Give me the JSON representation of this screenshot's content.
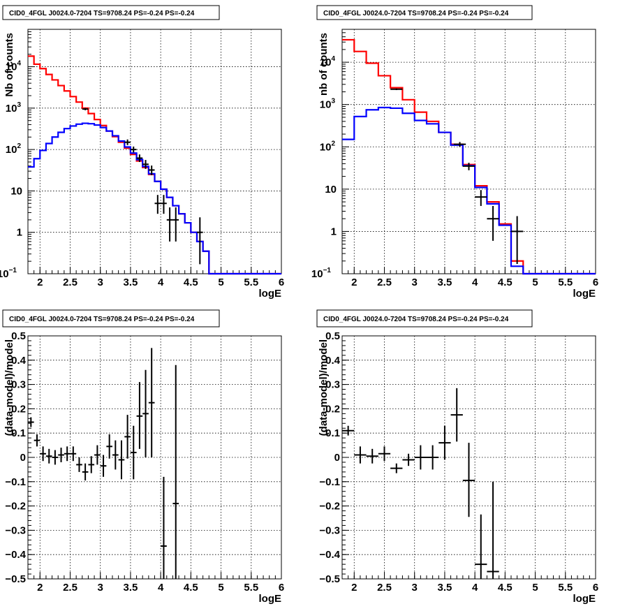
{
  "chart_data": [
    {
      "type": "histogram",
      "title": "CID0_4FGL J0024.0-7204 TS=9708.24 PS=-0.24 PS=-0.24",
      "xlabel": "logE",
      "ylabel": "Nb of counts",
      "xlim": [
        1.8,
        6.0
      ],
      "ylim": [
        0.1,
        80000
      ],
      "yscale": "log",
      "grid": true,
      "xticks": [
        "2",
        "2.5",
        "3",
        "3.5",
        "4",
        "4.5",
        "5",
        "5.5",
        "6"
      ],
      "yticks": [
        {
          "value": 0.1,
          "base": "10",
          "exp": "−1"
        },
        {
          "value": 1,
          "label": "1"
        },
        {
          "value": 10,
          "label": "10"
        },
        {
          "value": 100,
          "base": "10",
          "exp": "2"
        },
        {
          "value": 1000,
          "base": "10",
          "exp": "3"
        },
        {
          "value": 10000,
          "base": "10",
          "exp": "4"
        }
      ],
      "bin_edges": [
        1.8,
        1.9,
        2.0,
        2.1,
        2.2,
        2.3,
        2.4,
        2.5,
        2.6,
        2.7,
        2.8,
        2.9,
        3.0,
        3.1,
        3.2,
        3.3,
        3.4,
        3.5,
        3.6,
        3.7,
        3.8,
        3.9,
        4.0,
        4.1,
        4.2,
        4.3,
        4.4,
        4.5,
        4.6,
        4.7,
        4.8,
        4.9,
        5.0,
        5.1,
        5.2,
        5.3,
        5.4,
        5.5,
        5.6,
        5.7,
        5.8,
        5.9,
        6.0
      ],
      "series": [
        {
          "color": "#ff0000",
          "style": "step",
          "values": [
            18000,
            11500,
            9000,
            6500,
            4800,
            3500,
            2600,
            1900,
            1400,
            1000,
            740,
            530,
            380,
            280,
            205,
            150,
            108,
            76,
            53,
            37,
            25,
            17,
            11,
            7,
            4.4,
            2.8,
            1.7,
            1.0,
            0.6,
            0.35,
            0.1,
            0.1,
            0.1,
            0.1,
            0.1,
            0.1,
            0.1,
            0.1,
            0.1,
            0.1,
            0.1,
            0.1
          ]
        },
        {
          "color": "#0000ff",
          "style": "step",
          "values": [
            38,
            60,
            95,
            140,
            200,
            260,
            320,
            370,
            410,
            430,
            420,
            390,
            340,
            280,
            215,
            160,
            115,
            82,
            57,
            39,
            26,
            17,
            11,
            7,
            4.4,
            2.8,
            1.7,
            1.0,
            0.6,
            0.35,
            0.1,
            0.1,
            0.1,
            0.1,
            0.1,
            0.1,
            0.1,
            0.1,
            0.1,
            0.1,
            0.1,
            0.1
          ]
        }
      ],
      "points": [
        {
          "x": 2.75,
          "y": 950,
          "xerr": 0.05,
          "ylo": 890,
          "yhi": 1010
        },
        {
          "x": 3.45,
          "y": 150,
          "xerr": 0.05,
          "ylo": 128,
          "yhi": 175
        },
        {
          "x": 3.55,
          "y": 100,
          "xerr": 0.05,
          "ylo": 85,
          "yhi": 118
        },
        {
          "x": 3.65,
          "y": 62,
          "xerr": 0.05,
          "ylo": 50,
          "yhi": 76
        },
        {
          "x": 3.75,
          "y": 44,
          "xerr": 0.05,
          "ylo": 34,
          "yhi": 56
        },
        {
          "x": 3.85,
          "y": 32,
          "xerr": 0.05,
          "ylo": 24,
          "yhi": 41
        },
        {
          "x": 3.95,
          "y": 5,
          "xerr": 0.05,
          "ylo": 2.8,
          "yhi": 8
        },
        {
          "x": 4.05,
          "y": 5,
          "xerr": 0.05,
          "ylo": 2.8,
          "yhi": 8
        },
        {
          "x": 4.15,
          "y": 2,
          "xerr": 0.05,
          "ylo": 0.6,
          "yhi": 4
        },
        {
          "x": 4.25,
          "y": 2,
          "xerr": 0.05,
          "ylo": 0.6,
          "yhi": 4
        },
        {
          "x": 4.65,
          "y": 1,
          "xerr": 0.05,
          "ylo": 0.17,
          "yhi": 2.3
        }
      ]
    },
    {
      "type": "histogram",
      "title": "CID0_4FGL J0024.0-7204 TS=9708.24 PS=-0.24 PS=-0.24",
      "xlabel": "logE",
      "ylabel": "nb of counts",
      "xlim": [
        1.8,
        6.0
      ],
      "ylim": [
        0.1,
        60000
      ],
      "yscale": "log",
      "grid": true,
      "xticks": [
        "2",
        "2.5",
        "3",
        "3.5",
        "4",
        "4.5",
        "5",
        "5.5",
        "6"
      ],
      "yticks": [
        {
          "value": 0.1,
          "base": "10",
          "exp": "−1"
        },
        {
          "value": 1,
          "label": "1"
        },
        {
          "value": 10,
          "label": "10"
        },
        {
          "value": 100,
          "base": "10",
          "exp": "2"
        },
        {
          "value": 1000,
          "base": "10",
          "exp": "3"
        },
        {
          "value": 10000,
          "base": "10",
          "exp": "4"
        }
      ],
      "bin_edges": [
        1.8,
        2.0,
        2.2,
        2.4,
        2.6,
        2.8,
        3.0,
        3.2,
        3.4,
        3.6,
        3.8,
        4.0,
        4.2,
        4.4,
        4.6,
        4.8,
        5.0,
        5.2,
        5.4,
        5.6,
        5.8,
        6.0
      ],
      "series": [
        {
          "color": "#ff0000",
          "style": "step",
          "values": [
            34000,
            18000,
            9500,
            4800,
            2500,
            1300,
            660,
            400,
            220,
            115,
            38,
            12,
            5,
            1.5,
            0.2,
            0.1,
            0.1,
            0.1,
            0.1,
            0.1,
            0.1
          ]
        },
        {
          "color": "#0000ff",
          "style": "step",
          "values": [
            150,
            520,
            750,
            850,
            820,
            620,
            420,
            350,
            220,
            110,
            36,
            11,
            4.5,
            1.4,
            0.15,
            0.1,
            0.1,
            0.1,
            0.1,
            0.1,
            0.1
          ]
        }
      ],
      "points": [
        {
          "x": 2.7,
          "y": 2300,
          "xerr": 0.1,
          "ylo": 2200,
          "yhi": 2400
        },
        {
          "x": 3.75,
          "y": 115,
          "xerr": 0.1,
          "ylo": 100,
          "yhi": 130
        },
        {
          "x": 3.9,
          "y": 35,
          "xerr": 0.1,
          "ylo": 28,
          "yhi": 42
        },
        {
          "x": 4.1,
          "y": 6.5,
          "xerr": 0.1,
          "ylo": 4,
          "yhi": 9.5
        },
        {
          "x": 4.3,
          "y": 2,
          "xerr": 0.1,
          "ylo": 0.6,
          "yhi": 4
        },
        {
          "x": 4.7,
          "y": 1,
          "xerr": 0.1,
          "ylo": 0.17,
          "yhi": 2.3
        }
      ]
    },
    {
      "type": "scatter",
      "title": "CID0_4FGL J0024.0-7204 TS=9708.24 PS=-0.24 PS=-0.24",
      "xlabel": "logE",
      "ylabel": "(data-model)/model",
      "xlim": [
        1.8,
        6.0
      ],
      "ylim": [
        -0.5,
        0.5
      ],
      "yscale": "linear",
      "grid": true,
      "xticks": [
        "2",
        "2.5",
        "3",
        "3.5",
        "4",
        "4.5",
        "5",
        "5.5",
        "6"
      ],
      "yticks": [
        "−0.5",
        "−0.4",
        "−0.3",
        "−0.2",
        "−0.1",
        "0",
        "0.1",
        "0.2",
        "0.3",
        "0.4",
        "0.5"
      ],
      "points": [
        {
          "x": 1.85,
          "y": 0.145,
          "xerr": 0.05,
          "ylo": 0.125,
          "yhi": 0.165
        },
        {
          "x": 1.95,
          "y": 0.07,
          "xerr": 0.05,
          "ylo": 0.045,
          "yhi": 0.095
        },
        {
          "x": 2.05,
          "y": 0.015,
          "xerr": 0.05,
          "ylo": -0.015,
          "yhi": 0.045
        },
        {
          "x": 2.15,
          "y": 0.005,
          "xerr": 0.05,
          "ylo": -0.025,
          "yhi": 0.035
        },
        {
          "x": 2.25,
          "y": 0.0,
          "xerr": 0.05,
          "ylo": -0.03,
          "yhi": 0.03
        },
        {
          "x": 2.35,
          "y": 0.01,
          "xerr": 0.05,
          "ylo": -0.02,
          "yhi": 0.04
        },
        {
          "x": 2.45,
          "y": 0.015,
          "xerr": 0.05,
          "ylo": -0.015,
          "yhi": 0.045
        },
        {
          "x": 2.55,
          "y": 0.015,
          "xerr": 0.05,
          "ylo": -0.015,
          "yhi": 0.045
        },
        {
          "x": 2.65,
          "y": -0.03,
          "xerr": 0.05,
          "ylo": -0.06,
          "yhi": 0.0
        },
        {
          "x": 2.75,
          "y": -0.06,
          "xerr": 0.05,
          "ylo": -0.095,
          "yhi": -0.025
        },
        {
          "x": 2.85,
          "y": -0.03,
          "xerr": 0.05,
          "ylo": -0.065,
          "yhi": 0.005
        },
        {
          "x": 2.95,
          "y": 0.01,
          "xerr": 0.05,
          "ylo": -0.03,
          "yhi": 0.05
        },
        {
          "x": 3.05,
          "y": -0.035,
          "xerr": 0.05,
          "ylo": -0.08,
          "yhi": 0.01
        },
        {
          "x": 3.15,
          "y": 0.045,
          "xerr": 0.05,
          "ylo": -0.005,
          "yhi": 0.095
        },
        {
          "x": 3.25,
          "y": 0.01,
          "xerr": 0.05,
          "ylo": -0.05,
          "yhi": 0.07
        },
        {
          "x": 3.35,
          "y": -0.01,
          "xerr": 0.05,
          "ylo": -0.09,
          "yhi": 0.07
        },
        {
          "x": 3.45,
          "y": 0.085,
          "xerr": 0.05,
          "ylo": -0.005,
          "yhi": 0.175
        },
        {
          "x": 3.55,
          "y": 0.02,
          "xerr": 0.05,
          "ylo": -0.09,
          "yhi": 0.13
        },
        {
          "x": 3.65,
          "y": 0.17,
          "xerr": 0.05,
          "ylo": 0.035,
          "yhi": 0.31
        },
        {
          "x": 3.75,
          "y": 0.18,
          "xerr": 0.05,
          "ylo": 0.0,
          "yhi": 0.36
        },
        {
          "x": 3.85,
          "y": 0.225,
          "xerr": 0.05,
          "ylo": 0.0,
          "yhi": 0.45
        },
        {
          "x": 4.05,
          "y": -0.365,
          "xerr": 0.05,
          "ylo": -0.5,
          "yhi": -0.08
        },
        {
          "x": 4.25,
          "y": -0.19,
          "xerr": 0.05,
          "ylo": -0.5,
          "yhi": 0.38
        }
      ]
    },
    {
      "type": "scatter",
      "title": "CID0_4FGL J0024.0-7204 TS=9708.24 PS=-0.24 PS=-0.24",
      "xlabel": "logE",
      "ylabel": "(data-model)/model",
      "xlim": [
        1.8,
        6.0
      ],
      "ylim": [
        -0.5,
        0.5
      ],
      "yscale": "linear",
      "grid": true,
      "xticks": [
        "2",
        "2.5",
        "3",
        "3.5",
        "4",
        "4.5",
        "5",
        "5.5",
        "6"
      ],
      "yticks": [
        "−0.5",
        "−0.4",
        "−0.3",
        "−0.2",
        "−0.1",
        "0",
        "0.1",
        "0.2",
        "0.3",
        "0.4",
        "0.5"
      ],
      "points": [
        {
          "x": 1.9,
          "y": 0.11,
          "xerr": 0.1,
          "ylo": 0.09,
          "yhi": 0.13
        },
        {
          "x": 2.1,
          "y": 0.01,
          "xerr": 0.1,
          "ylo": -0.025,
          "yhi": 0.045
        },
        {
          "x": 2.3,
          "y": 0.005,
          "xerr": 0.1,
          "ylo": -0.025,
          "yhi": 0.035
        },
        {
          "x": 2.5,
          "y": 0.015,
          "xerr": 0.1,
          "ylo": -0.015,
          "yhi": 0.045
        },
        {
          "x": 2.7,
          "y": -0.045,
          "xerr": 0.1,
          "ylo": -0.065,
          "yhi": -0.025
        },
        {
          "x": 2.9,
          "y": -0.01,
          "xerr": 0.1,
          "ylo": -0.035,
          "yhi": 0.015
        },
        {
          "x": 3.1,
          "y": 0.0,
          "xerr": 0.1,
          "ylo": -0.05,
          "yhi": 0.05
        },
        {
          "x": 3.3,
          "y": 0.0,
          "xerr": 0.1,
          "ylo": -0.05,
          "yhi": 0.05
        },
        {
          "x": 3.5,
          "y": 0.06,
          "xerr": 0.1,
          "ylo": -0.01,
          "yhi": 0.13
        },
        {
          "x": 3.7,
          "y": 0.175,
          "xerr": 0.1,
          "ylo": 0.065,
          "yhi": 0.285
        },
        {
          "x": 3.9,
          "y": -0.095,
          "xerr": 0.1,
          "ylo": -0.245,
          "yhi": 0.06
        },
        {
          "x": 4.1,
          "y": -0.44,
          "xerr": 0.1,
          "ylo": -0.5,
          "yhi": -0.235
        },
        {
          "x": 4.3,
          "y": -0.47,
          "xerr": 0.1,
          "ylo": -0.5,
          "yhi": -0.1
        }
      ]
    }
  ]
}
